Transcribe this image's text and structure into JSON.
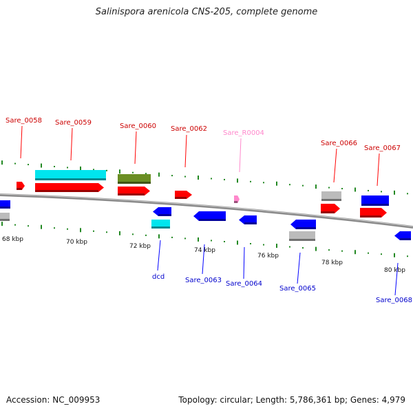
{
  "title": "Salinispora arenicola CNS-205, complete genome",
  "footer": {
    "accession": "Accession: NC_009953",
    "summary": "Topology: circular; Length: 5,786,361 bp; Genes: 4,979"
  },
  "colors": {
    "cds_forward": "#ff0000",
    "cds_reverse": "#0000ff",
    "label_forward": "#cc0000",
    "label_reverse": "#0000cc",
    "rrna_or_trna": "#ff88cc",
    "backbone": "#888888",
    "ticks": "#228822",
    "cyan": "#00e5ee",
    "olive": "#6b8e23",
    "gray": "#bbbbbb"
  },
  "ticks": [
    "68 kbp",
    "70 kbp",
    "72 kbp",
    "74 kbp",
    "76 kbp",
    "78 kbp",
    "80 kbp"
  ],
  "genes": [
    {
      "label": "Sare_0058",
      "strand": "forward"
    },
    {
      "label": "Sare_0059",
      "strand": "forward"
    },
    {
      "label": "Sare_0060",
      "strand": "forward"
    },
    {
      "label": "Sare_0062",
      "strand": "forward"
    },
    {
      "label": "Sare_R0004",
      "strand": "forward"
    },
    {
      "label": "Sare_0066",
      "strand": "forward"
    },
    {
      "label": "Sare_0067",
      "strand": "forward"
    },
    {
      "label": "dcd",
      "strand": "reverse"
    },
    {
      "label": "Sare_0063",
      "strand": "reverse"
    },
    {
      "label": "Sare_0064",
      "strand": "reverse"
    },
    {
      "label": "Sare_0065",
      "strand": "reverse"
    },
    {
      "label": "Sare_0068",
      "strand": "reverse"
    }
  ]
}
